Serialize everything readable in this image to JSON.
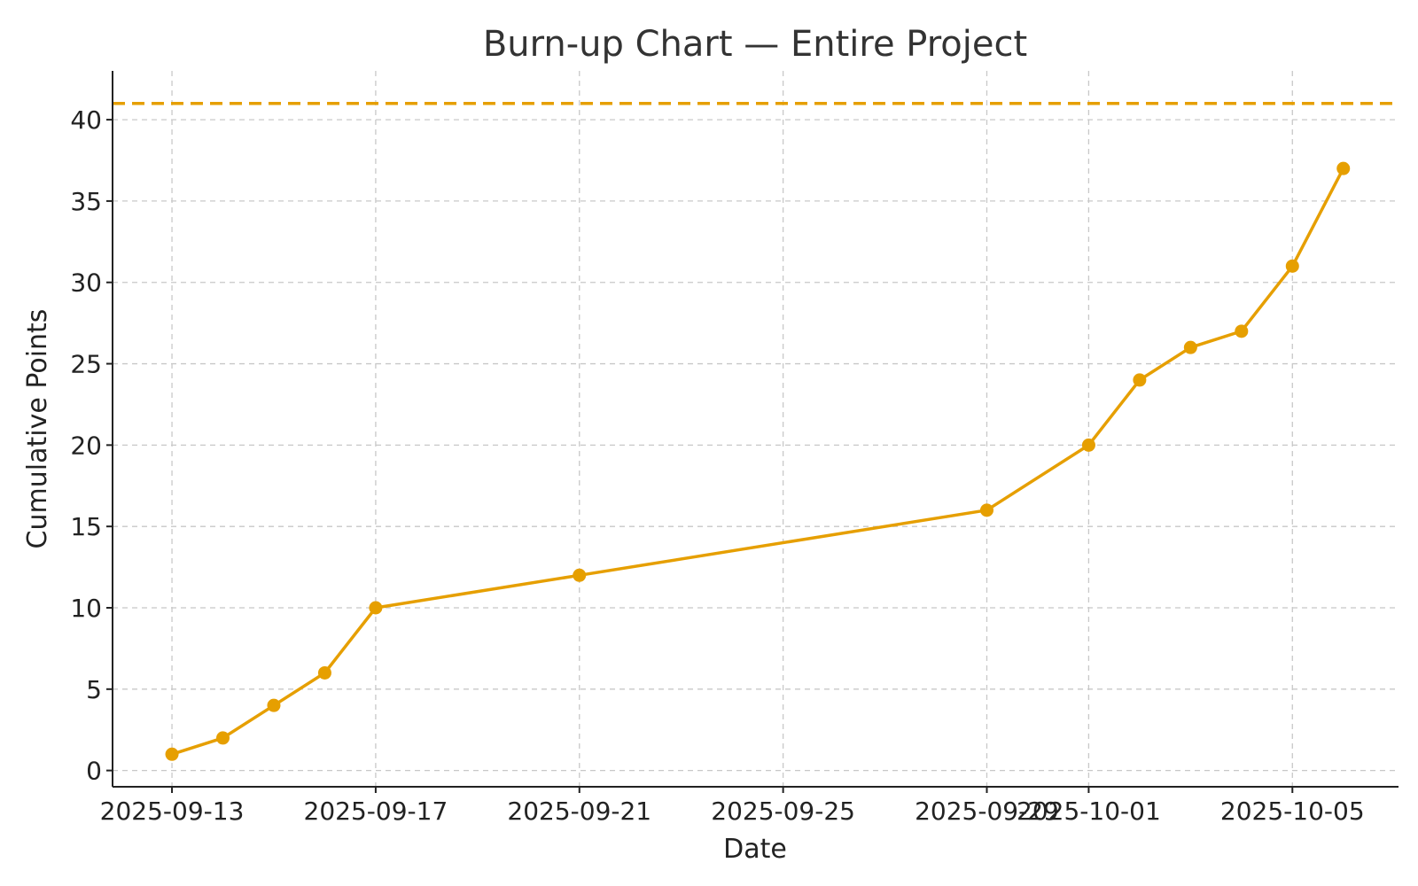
{
  "chart_data": {
    "type": "line",
    "title": "Burn-up Chart — Entire Project",
    "xlabel": "Date",
    "ylabel": "Cumulative Points",
    "grid": true,
    "xlim": [
      "2025-09-11T20:00",
      "2025-10-07T02:00"
    ],
    "ylim": [
      -1,
      43
    ],
    "x_ticks": [
      "2025-09-13",
      "2025-09-17",
      "2025-09-21",
      "2025-09-25",
      "2025-09-29",
      "2025-10-01",
      "2025-10-05"
    ],
    "y_ticks": [
      0,
      5,
      10,
      15,
      20,
      25,
      30,
      35,
      40
    ],
    "series": [
      {
        "color": "#E69F00",
        "marker": "circle",
        "points": [
          {
            "x": "2025-09-13",
            "y": 1
          },
          {
            "x": "2025-09-14",
            "y": 2
          },
          {
            "x": "2025-09-15",
            "y": 4
          },
          {
            "x": "2025-09-16",
            "y": 6
          },
          {
            "x": "2025-09-17",
            "y": 10
          },
          {
            "x": "2025-09-21",
            "y": 12
          },
          {
            "x": "2025-09-29",
            "y": 16
          },
          {
            "x": "2025-10-01",
            "y": 20
          },
          {
            "x": "2025-10-02",
            "y": 24
          },
          {
            "x": "2025-10-03",
            "y": 26
          },
          {
            "x": "2025-10-04",
            "y": 27
          },
          {
            "x": "2025-10-05",
            "y": 31
          },
          {
            "x": "2025-10-06",
            "y": 37
          }
        ]
      }
    ],
    "reference_lines": [
      {
        "y": 41,
        "style": "dashed",
        "color": "#E69F00"
      }
    ]
  }
}
